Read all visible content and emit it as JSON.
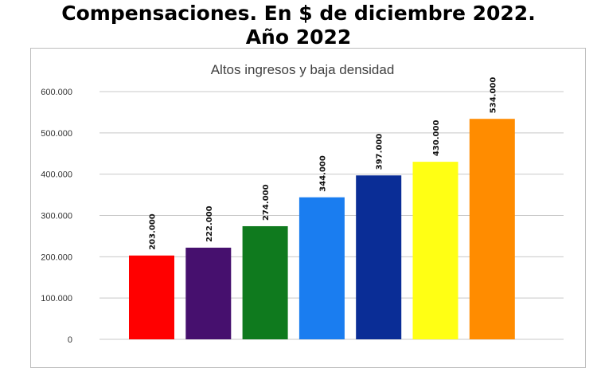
{
  "headline": {
    "line1": "Compensaciones. En $ de diciembre 2022.",
    "line2": "Año 2022"
  },
  "chart_data": {
    "type": "bar",
    "title": "Altos ingresos y baja densidad",
    "xlabel": "",
    "ylabel": "",
    "ylim": [
      0,
      600000
    ],
    "yticks": [
      0,
      100000,
      200000,
      300000,
      400000,
      500000,
      600000
    ],
    "ytick_labels": [
      "0",
      "100.000",
      "200.000",
      "300.000",
      "400.000",
      "500.000",
      "600.000"
    ],
    "grid": true,
    "legend": "none",
    "values": [
      203000,
      222000,
      274000,
      344000,
      397000,
      430000,
      534000
    ],
    "data_labels": [
      "203.000",
      "222.000",
      "274.000",
      "344.000",
      "397.000",
      "430.000",
      "534.000"
    ],
    "colors": [
      "#ff0000",
      "#46106e",
      "#0f7a1e",
      "#1a7df0",
      "#0a2d96",
      "#ffff14",
      "#ff8c00"
    ]
  }
}
